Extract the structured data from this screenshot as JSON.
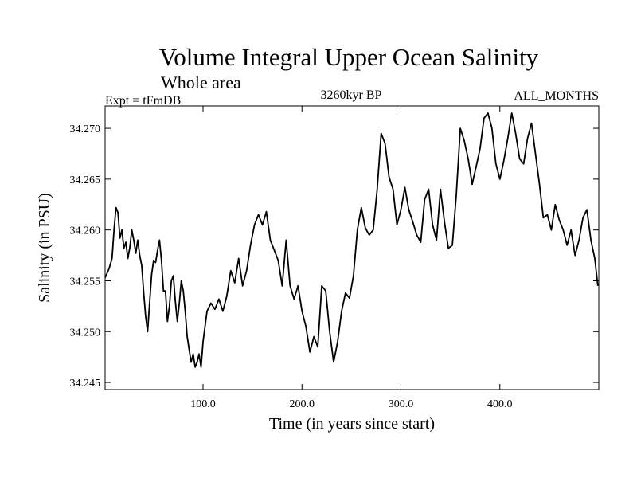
{
  "chart_data": {
    "type": "line",
    "title": "Volume Integral Upper Ocean Salinity",
    "subtitle": "Whole area",
    "left_note": "Expt = tFmDB",
    "center_note": "3260kyr BP",
    "right_note": "ALL_MONTHS",
    "xlabel": "Time (in years since start)",
    "ylabel": "Salinity (in PSU)",
    "xlim": [
      1,
      500
    ],
    "ylim": [
      34.2443,
      34.2722
    ],
    "x_ticks": [
      100,
      200,
      300,
      400
    ],
    "x_tick_labels": [
      "100.0",
      "200.0",
      "300.0",
      "400.0"
    ],
    "y_ticks": [
      34.245,
      34.25,
      34.255,
      34.26,
      34.265,
      34.27
    ],
    "y_tick_labels": [
      "34.245",
      "34.250",
      "34.255",
      "34.260",
      "34.265",
      "34.270"
    ],
    "grid": false,
    "series": [
      {
        "name": "Salinity",
        "x": [
          1,
          5,
          8,
          10,
          12,
          14,
          16,
          18,
          20,
          22,
          24,
          26,
          28,
          30,
          32,
          34,
          36,
          38,
          40,
          42,
          44,
          46,
          48,
          50,
          52,
          54,
          56,
          58,
          60,
          62,
          64,
          66,
          68,
          70,
          72,
          74,
          76,
          78,
          80,
          82,
          84,
          86,
          88,
          90,
          92,
          94,
          96,
          98,
          100,
          104,
          108,
          112,
          116,
          120,
          124,
          128,
          132,
          136,
          140,
          144,
          148,
          152,
          156,
          160,
          164,
          168,
          172,
          176,
          180,
          184,
          188,
          192,
          196,
          200,
          204,
          208,
          212,
          216,
          220,
          224,
          228,
          232,
          236,
          240,
          244,
          248,
          252,
          256,
          260,
          264,
          268,
          272,
          276,
          280,
          284,
          288,
          292,
          296,
          300,
          304,
          308,
          312,
          316,
          320,
          324,
          328,
          332,
          336,
          340,
          344,
          348,
          352,
          356,
          360,
          364,
          368,
          372,
          376,
          380,
          384,
          388,
          392,
          396,
          400,
          404,
          408,
          412,
          416,
          420,
          424,
          428,
          432,
          436,
          440,
          444,
          448,
          452,
          456,
          460,
          464,
          468,
          472,
          476,
          480,
          484,
          488,
          492,
          496,
          499
        ],
        "values": [
          34.2553,
          34.2562,
          34.2572,
          34.26,
          34.2622,
          34.2617,
          34.2592,
          34.26,
          34.2582,
          34.2588,
          34.2572,
          34.2583,
          34.26,
          34.259,
          34.2577,
          34.259,
          34.2575,
          34.2565,
          34.2538,
          34.2515,
          34.25,
          34.2528,
          34.2556,
          34.257,
          34.2568,
          34.258,
          34.259,
          34.257,
          34.254,
          34.254,
          34.251,
          34.2525,
          34.255,
          34.2555,
          34.253,
          34.251,
          34.2528,
          34.255,
          34.254,
          34.252,
          34.2495,
          34.2482,
          34.247,
          34.2478,
          34.2465,
          34.247,
          34.2478,
          34.2465,
          34.249,
          34.252,
          34.2528,
          34.2522,
          34.2532,
          34.252,
          34.2535,
          34.256,
          34.2548,
          34.2572,
          34.2545,
          34.256,
          34.2585,
          34.2605,
          34.2615,
          34.2605,
          34.2618,
          34.259,
          34.258,
          34.257,
          34.2545,
          34.259,
          34.2545,
          34.2532,
          34.2545,
          34.252,
          34.2505,
          34.248,
          34.2495,
          34.2485,
          34.2545,
          34.254,
          34.25,
          34.247,
          34.249,
          34.252,
          34.2538,
          34.2533,
          34.2555,
          34.26,
          34.2622,
          34.2602,
          34.2595,
          34.26,
          34.264,
          34.2695,
          34.2685,
          34.2652,
          34.264,
          34.2605,
          34.262,
          34.2642,
          34.262,
          34.2608,
          34.2595,
          34.2588,
          34.263,
          34.264,
          34.2605,
          34.259,
          34.264,
          34.2608,
          34.2582,
          34.2585,
          34.2635,
          34.27,
          34.2688,
          34.267,
          34.2645,
          34.2662,
          34.268,
          34.271,
          34.2715,
          34.27,
          34.2665,
          34.265,
          34.2668,
          34.269,
          34.2715,
          34.2695,
          34.267,
          34.2665,
          34.269,
          34.2705,
          34.2675,
          34.2645,
          34.2612,
          34.2615,
          34.26,
          34.2625,
          34.261,
          34.26,
          34.2585,
          34.26,
          34.2575,
          34.259,
          34.2612,
          34.262,
          34.259,
          34.2572,
          34.2545
        ]
      }
    ]
  }
}
